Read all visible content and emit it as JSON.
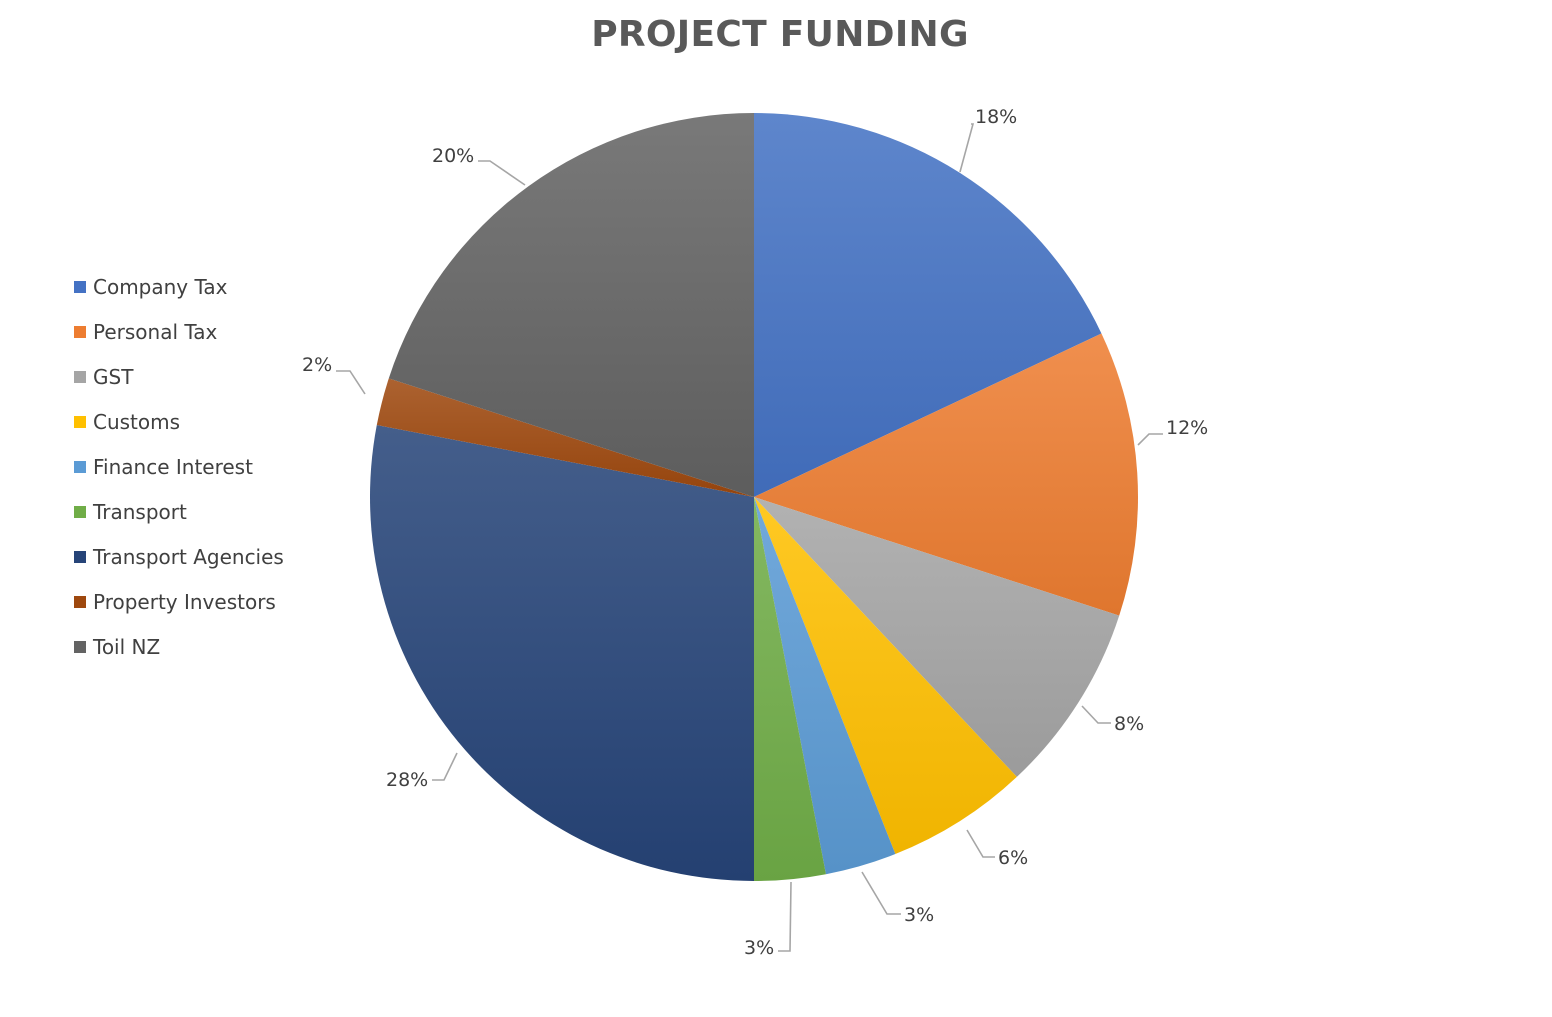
{
  "chart_data": {
    "type": "pie",
    "title": "PROJECT FUNDING",
    "legend_position": "left",
    "start_angle": "12 o'clock",
    "direction": "clockwise",
    "categories": [
      "Company Tax",
      "Personal Tax",
      "GST",
      "Customs",
      "Finance Interest",
      "Transport",
      "Transport Agencies",
      "Property Investors",
      "Toil NZ"
    ],
    "values": [
      18,
      12,
      8,
      6,
      3,
      3,
      28,
      2,
      20
    ],
    "labels": [
      "18%",
      "12%",
      "8%",
      "6%",
      "3%",
      "3%",
      "28%",
      "2%",
      "20%"
    ],
    "colors": [
      "#4472C4",
      "#ED7D31",
      "#A5A5A5",
      "#FFC000",
      "#5B9BD5",
      "#70AD47",
      "#264478",
      "#9E480E",
      "#636363"
    ]
  }
}
